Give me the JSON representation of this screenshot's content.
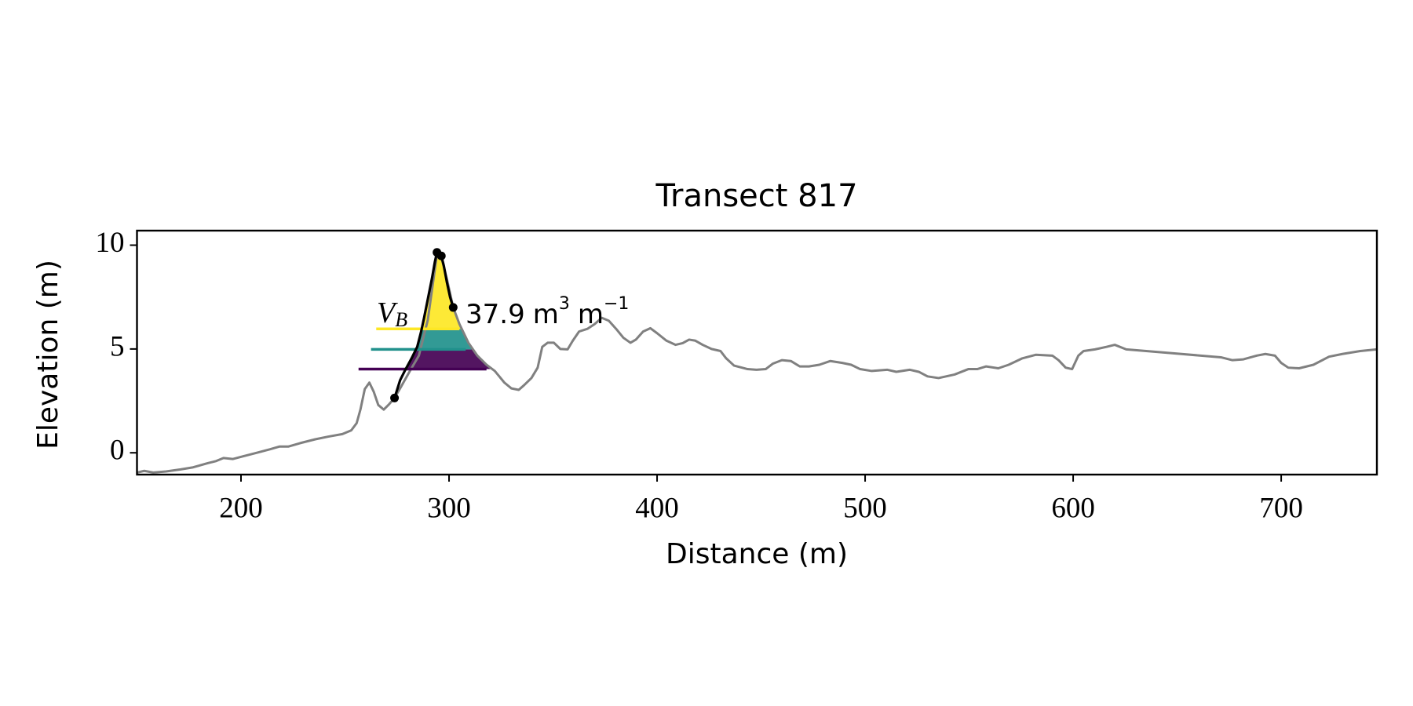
{
  "chart_data": {
    "type": "line",
    "title": "Transect 817",
    "xlabel": "Distance (m)",
    "ylabel": "Elevation (m)",
    "xlim": [
      150,
      746
    ],
    "ylim": [
      -1.05,
      10.7
    ],
    "xticks": [
      200,
      300,
      400,
      500,
      600,
      700
    ],
    "yticks": [
      0,
      5,
      10
    ],
    "series": [
      {
        "color": "#808080",
        "x": [
          150,
          153.5,
          157.8,
          164,
          171,
          177,
          184,
          188,
          191.6,
          196,
          201,
          207.6,
          214,
          218.4,
          222.7,
          229,
          235.7,
          242,
          248.7,
          253,
          255.6,
          257.4,
          259.5,
          261.7,
          263.8,
          266,
          268.6,
          271.2,
          273.8,
          276.8,
          281.2,
          285.5,
          289.8,
          294.2,
          296.3,
          299,
          302,
          305,
          309.3,
          313.6,
          318,
          322,
          326.6,
          330,
          333.5,
          336,
          339.6,
          342.6,
          344.8,
          347.4,
          350.4,
          353.5,
          357,
          359.5,
          362.5,
          366.5,
          370,
          373.4,
          376.8,
          380.3,
          383.8,
          387.2,
          389.8,
          393.3,
          396.8,
          400,
          404.5,
          408.9,
          412.3,
          415.4,
          418.4,
          421.9,
          426.2,
          430.5,
          433.2,
          437,
          443.5,
          447.8,
          452.2,
          455.6,
          460,
          464.3,
          468.6,
          473,
          478,
          483.3,
          489,
          493.3,
          497.6,
          503.2,
          510.6,
          515,
          521.4,
          525.8,
          530,
          535.3,
          543,
          549.6,
          553.9,
          558.2,
          564,
          569,
          575.6,
          582,
          590,
          593,
          596.4,
          599.5,
          602.5,
          605,
          610.5,
          616,
          620,
          625.5,
          647,
          671,
          676.6,
          681.8,
          688.3,
          692.4,
          697,
          700,
          703.4,
          708.6,
          715.5,
          723,
          729.4,
          738,
          746
        ],
        "values": [
          -0.95,
          -0.87,
          -0.95,
          -0.9,
          -0.8,
          -0.7,
          -0.5,
          -0.4,
          -0.25,
          -0.3,
          -0.17,
          0,
          0.17,
          0.3,
          0.3,
          0.48,
          0.65,
          0.78,
          0.9,
          1.08,
          1.43,
          2.08,
          3.07,
          3.38,
          2.94,
          2.3,
          2.08,
          2.34,
          2.64,
          3.16,
          3.94,
          4.68,
          6.4,
          9.57,
          9.44,
          8.35,
          7.0,
          6.2,
          5.3,
          4.68,
          4.24,
          3.94,
          3.38,
          3.1,
          3.03,
          3.25,
          3.6,
          4.1,
          5.1,
          5.3,
          5.3,
          5.0,
          4.98,
          5.4,
          5.84,
          5.97,
          6.2,
          6.5,
          6.36,
          5.97,
          5.54,
          5.3,
          5.45,
          5.84,
          6.0,
          5.76,
          5.4,
          5.2,
          5.28,
          5.45,
          5.4,
          5.2,
          5.0,
          4.9,
          4.55,
          4.2,
          4.03,
          4.0,
          4.03,
          4.29,
          4.46,
          4.42,
          4.16,
          4.16,
          4.24,
          4.42,
          4.33,
          4.24,
          4.03,
          3.94,
          4.0,
          3.9,
          4.0,
          3.9,
          3.68,
          3.6,
          3.77,
          4.03,
          4.03,
          4.16,
          4.07,
          4.24,
          4.55,
          4.72,
          4.68,
          4.46,
          4.1,
          4.03,
          4.68,
          4.9,
          4.98,
          5.1,
          5.2,
          4.98,
          4.8,
          4.6,
          4.46,
          4.5,
          4.68,
          4.76,
          4.68,
          4.33,
          4.1,
          4.07,
          4.24,
          4.63,
          4.76,
          4.9,
          4.98
        ]
      }
    ],
    "dune": {
      "color": "#000000",
      "fill": "#cccccc",
      "x": [
        273.8,
        276.5,
        279,
        282,
        284.7,
        286.5,
        288,
        290,
        291.8,
        293.2,
        294.2,
        296.3,
        297.5,
        299,
        300.5,
        302
      ],
      "values": [
        2.64,
        3.5,
        4.0,
        4.55,
        5.1,
        5.8,
        6.5,
        7.5,
        8.4,
        9.2,
        9.65,
        9.48,
        9.0,
        8.2,
        7.5,
        7.0
      ]
    },
    "points": {
      "color": "#000000",
      "x": [
        273.8,
        294.2,
        296.3,
        302
      ],
      "values": [
        2.64,
        9.65,
        9.48,
        7.0
      ]
    },
    "levels": [
      {
        "y": 4.03,
        "x": [
          256.5,
          318
        ],
        "color": "#440154"
      },
      {
        "y": 4.98,
        "x": [
          262.5,
          308
        ],
        "color": "#21918c"
      },
      {
        "y": 5.97,
        "x": [
          265,
          305
        ],
        "color": "#fde725"
      }
    ],
    "annotation": {
      "symbol": "V",
      "subscript": "B",
      "value": 37.9,
      "unit": "m",
      "unit_exp": "3",
      "unit2": "m",
      "unit2_exp": "−1"
    }
  }
}
